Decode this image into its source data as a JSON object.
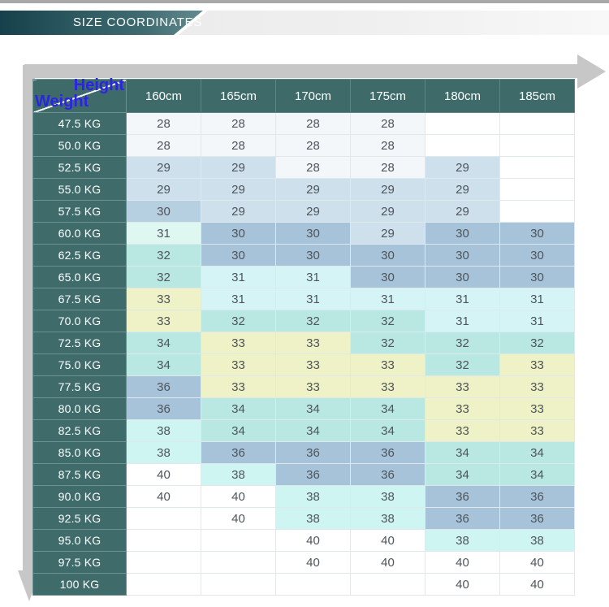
{
  "banner": {
    "title": "SIZE COORDINATES"
  },
  "corner": {
    "top": "Height",
    "bottom": "Weight"
  },
  "colors": {
    "a": "#f3f7fa",
    "b": "#cde0ec",
    "c": "#b6cfe1",
    "d": "#a7c3d9",
    "m": "#def8f1",
    "p": "#d4f4f5",
    "t": "#b9e8e2",
    "y": "#eef2c6",
    "f": "#cef5f2",
    "w": "#ffffff",
    "header_teal": "#3e6b6a",
    "label_teal": "#3f6c6b",
    "banner_teal_dark": "#16404b",
    "banner_teal_light": "#638b8f",
    "banner_gray": "#ececec",
    "top_strip_gray": "#a8a8a8",
    "arrow_gray": "#c7c7c7",
    "accent_blue": "#2c24e4",
    "value_text": "#4f555a"
  },
  "chart_data": {
    "type": "table",
    "title": "SIZE COORDINATES",
    "col_axis_label": "Height",
    "row_axis_label": "Weight",
    "columns": [
      "160cm",
      "165cm",
      "170cm",
      "175cm",
      "180cm",
      "185cm"
    ],
    "rows": [
      {
        "weight": "47.5 KG",
        "cells": [
          {
            "v": 28,
            "c": "a"
          },
          {
            "v": 28,
            "c": "a"
          },
          {
            "v": 28,
            "c": "a"
          },
          {
            "v": 28,
            "c": "a"
          },
          {
            "v": null,
            "c": "w"
          },
          {
            "v": null,
            "c": "w"
          }
        ]
      },
      {
        "weight": "50.0 KG",
        "cells": [
          {
            "v": 28,
            "c": "a"
          },
          {
            "v": 28,
            "c": "a"
          },
          {
            "v": 28,
            "c": "a"
          },
          {
            "v": 28,
            "c": "a"
          },
          {
            "v": null,
            "c": "w"
          },
          {
            "v": null,
            "c": "w"
          }
        ]
      },
      {
        "weight": "52.5 KG",
        "cells": [
          {
            "v": 29,
            "c": "b"
          },
          {
            "v": 29,
            "c": "b"
          },
          {
            "v": 28,
            "c": "a"
          },
          {
            "v": 28,
            "c": "a"
          },
          {
            "v": 29,
            "c": "b"
          },
          {
            "v": null,
            "c": "w"
          }
        ]
      },
      {
        "weight": "55.0 KG",
        "cells": [
          {
            "v": 29,
            "c": "b"
          },
          {
            "v": 29,
            "c": "b"
          },
          {
            "v": 29,
            "c": "b"
          },
          {
            "v": 29,
            "c": "b"
          },
          {
            "v": 29,
            "c": "b"
          },
          {
            "v": null,
            "c": "w"
          }
        ]
      },
      {
        "weight": "57.5 KG",
        "cells": [
          {
            "v": 30,
            "c": "c"
          },
          {
            "v": 29,
            "c": "b"
          },
          {
            "v": 29,
            "c": "b"
          },
          {
            "v": 29,
            "c": "b"
          },
          {
            "v": 29,
            "c": "b"
          },
          {
            "v": null,
            "c": "w"
          }
        ]
      },
      {
        "weight": "60.0 KG",
        "cells": [
          {
            "v": 31,
            "c": "m"
          },
          {
            "v": 30,
            "c": "d"
          },
          {
            "v": 30,
            "c": "d"
          },
          {
            "v": 29,
            "c": "b"
          },
          {
            "v": 30,
            "c": "d"
          },
          {
            "v": 30,
            "c": "d"
          }
        ]
      },
      {
        "weight": "62.5 KG",
        "cells": [
          {
            "v": 32,
            "c": "t"
          },
          {
            "v": 30,
            "c": "d"
          },
          {
            "v": 30,
            "c": "d"
          },
          {
            "v": 30,
            "c": "d"
          },
          {
            "v": 30,
            "c": "d"
          },
          {
            "v": 30,
            "c": "d"
          }
        ]
      },
      {
        "weight": "65.0 KG",
        "cells": [
          {
            "v": 32,
            "c": "t"
          },
          {
            "v": 31,
            "c": "p"
          },
          {
            "v": 31,
            "c": "p"
          },
          {
            "v": 30,
            "c": "d"
          },
          {
            "v": 30,
            "c": "d"
          },
          {
            "v": 30,
            "c": "d"
          }
        ]
      },
      {
        "weight": "67.5 KG",
        "cells": [
          {
            "v": 33,
            "c": "y"
          },
          {
            "v": 31,
            "c": "p"
          },
          {
            "v": 31,
            "c": "p"
          },
          {
            "v": 31,
            "c": "p"
          },
          {
            "v": 31,
            "c": "p"
          },
          {
            "v": 31,
            "c": "p"
          }
        ]
      },
      {
        "weight": "70.0 KG",
        "cells": [
          {
            "v": 33,
            "c": "y"
          },
          {
            "v": 32,
            "c": "t"
          },
          {
            "v": 32,
            "c": "t"
          },
          {
            "v": 32,
            "c": "t"
          },
          {
            "v": 31,
            "c": "p"
          },
          {
            "v": 31,
            "c": "p"
          }
        ]
      },
      {
        "weight": "72.5 KG",
        "cells": [
          {
            "v": 34,
            "c": "t"
          },
          {
            "v": 33,
            "c": "y"
          },
          {
            "v": 33,
            "c": "y"
          },
          {
            "v": 32,
            "c": "t"
          },
          {
            "v": 32,
            "c": "t"
          },
          {
            "v": 32,
            "c": "t"
          }
        ]
      },
      {
        "weight": "75.0 KG",
        "cells": [
          {
            "v": 34,
            "c": "t"
          },
          {
            "v": 33,
            "c": "y"
          },
          {
            "v": 33,
            "c": "y"
          },
          {
            "v": 33,
            "c": "y"
          },
          {
            "v": 32,
            "c": "t"
          },
          {
            "v": 33,
            "c": "y"
          }
        ]
      },
      {
        "weight": "77.5 KG",
        "cells": [
          {
            "v": 36,
            "c": "d"
          },
          {
            "v": 33,
            "c": "y"
          },
          {
            "v": 33,
            "c": "y"
          },
          {
            "v": 33,
            "c": "y"
          },
          {
            "v": 33,
            "c": "y"
          },
          {
            "v": 33,
            "c": "y"
          }
        ]
      },
      {
        "weight": "80.0 KG",
        "cells": [
          {
            "v": 36,
            "c": "d"
          },
          {
            "v": 34,
            "c": "t"
          },
          {
            "v": 34,
            "c": "t"
          },
          {
            "v": 34,
            "c": "t"
          },
          {
            "v": 33,
            "c": "y"
          },
          {
            "v": 33,
            "c": "y"
          }
        ]
      },
      {
        "weight": "82.5 KG",
        "cells": [
          {
            "v": 38,
            "c": "f"
          },
          {
            "v": 34,
            "c": "t"
          },
          {
            "v": 34,
            "c": "t"
          },
          {
            "v": 34,
            "c": "t"
          },
          {
            "v": 33,
            "c": "y"
          },
          {
            "v": 33,
            "c": "y"
          }
        ]
      },
      {
        "weight": "85.0 KG",
        "cells": [
          {
            "v": 38,
            "c": "f"
          },
          {
            "v": 36,
            "c": "d"
          },
          {
            "v": 36,
            "c": "d"
          },
          {
            "v": 36,
            "c": "d"
          },
          {
            "v": 34,
            "c": "t"
          },
          {
            "v": 34,
            "c": "t"
          }
        ]
      },
      {
        "weight": "87.5 KG",
        "cells": [
          {
            "v": 40,
            "c": "w"
          },
          {
            "v": 38,
            "c": "f"
          },
          {
            "v": 36,
            "c": "d"
          },
          {
            "v": 36,
            "c": "d"
          },
          {
            "v": 34,
            "c": "t"
          },
          {
            "v": 34,
            "c": "t"
          }
        ]
      },
      {
        "weight": "90.0 KG",
        "cells": [
          {
            "v": 40,
            "c": "w"
          },
          {
            "v": 40,
            "c": "w"
          },
          {
            "v": 38,
            "c": "f"
          },
          {
            "v": 38,
            "c": "f"
          },
          {
            "v": 36,
            "c": "d"
          },
          {
            "v": 36,
            "c": "d"
          }
        ]
      },
      {
        "weight": "92.5 KG",
        "cells": [
          {
            "v": null,
            "c": "w"
          },
          {
            "v": 40,
            "c": "w"
          },
          {
            "v": 38,
            "c": "f"
          },
          {
            "v": 38,
            "c": "f"
          },
          {
            "v": 36,
            "c": "d"
          },
          {
            "v": 36,
            "c": "d"
          }
        ]
      },
      {
        "weight": "95.0 KG",
        "cells": [
          {
            "v": null,
            "c": "w"
          },
          {
            "v": null,
            "c": "w"
          },
          {
            "v": 40,
            "c": "w"
          },
          {
            "v": 40,
            "c": "w"
          },
          {
            "v": 38,
            "c": "f"
          },
          {
            "v": 38,
            "c": "f"
          }
        ]
      },
      {
        "weight": "97.5 KG",
        "cells": [
          {
            "v": null,
            "c": "w"
          },
          {
            "v": null,
            "c": "w"
          },
          {
            "v": 40,
            "c": "w"
          },
          {
            "v": 40,
            "c": "w"
          },
          {
            "v": 40,
            "c": "w"
          },
          {
            "v": 40,
            "c": "w"
          }
        ]
      },
      {
        "weight": "100 KG",
        "cells": [
          {
            "v": null,
            "c": "w"
          },
          {
            "v": null,
            "c": "w"
          },
          {
            "v": null,
            "c": "w"
          },
          {
            "v": null,
            "c": "w"
          },
          {
            "v": 40,
            "c": "w"
          },
          {
            "v": 40,
            "c": "w"
          }
        ]
      }
    ]
  }
}
